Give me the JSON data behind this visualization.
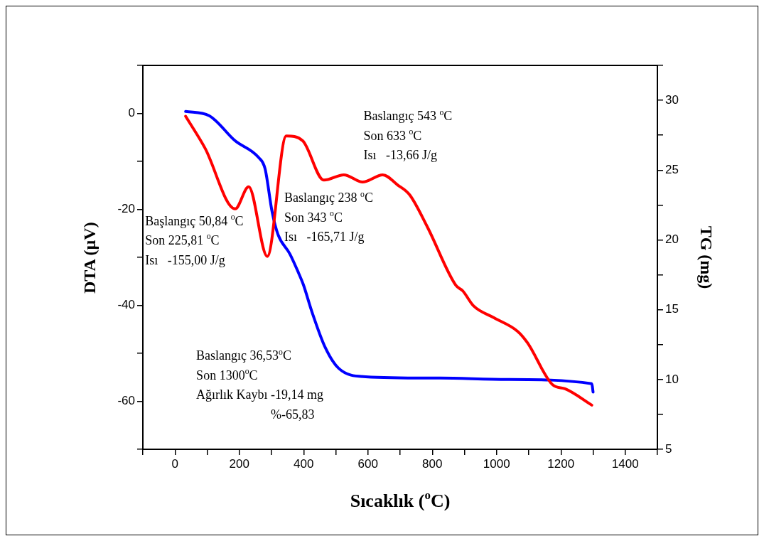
{
  "chart_data": {
    "type": "line",
    "xlabel": "Sıcaklık ($^{o}$C)",
    "ylabel": "DTA (µV)",
    "y2label": "TG (mg)",
    "xlim": [
      -100,
      1500
    ],
    "xticks": [
      {
        "value": -100,
        "label": null
      },
      0,
      {
        "value": 100,
        "label": null
      },
      200,
      {
        "value": 300,
        "label": null
      },
      400,
      {
        "value": 500,
        "label": null
      },
      600,
      {
        "value": 700,
        "label": null
      },
      800,
      {
        "value": 900,
        "label": null
      },
      1000,
      {
        "value": 1100,
        "label": null
      },
      1200,
      {
        "value": 1300,
        "label": null
      },
      1400,
      {
        "value": 1500,
        "label": null
      }
    ],
    "ylim": [
      -70,
      10
    ],
    "yticks": [
      {
        "value": -70,
        "label": null
      },
      -60,
      {
        "value": -50,
        "label": null
      },
      -40,
      {
        "value": -30,
        "label": null
      },
      -20,
      {
        "value": -10,
        "label": null
      },
      0,
      {
        "value": 10,
        "label": null
      }
    ],
    "y2lim": [
      5,
      32.5
    ],
    "y2ticks": [
      5,
      {
        "value": 7.5,
        "label": null
      },
      10,
      {
        "value": 12.5,
        "label": null
      },
      15,
      {
        "value": 17.5,
        "label": null
      },
      20,
      {
        "value": 22.5,
        "label": null
      },
      25,
      {
        "value": 27.5,
        "label": null
      },
      30,
      {
        "value": 32.5,
        "label": null
      }
    ],
    "grid": false,
    "legend": false,
    "marker": "none",
    "line_style": "solid",
    "series": [
      {
        "color": "#ff0000",
        "x": [
          33,
          93,
          187,
          229,
          287,
          346,
          397,
          463,
          525,
          584,
          646,
          692,
          730,
          785,
          873,
          895,
          928,
          992,
          1065,
          1096,
          1175,
          1213,
          1296
        ],
        "values": [
          -0.6,
          -7.2,
          -19.9,
          -15.3,
          -29.8,
          -4.7,
          -5.7,
          -13.9,
          -12.8,
          -14.3,
          -12.8,
          -14.9,
          -17,
          -23.7,
          -35.8,
          -37,
          -40.1,
          -42.6,
          -45.4,
          -47.8,
          -56.6,
          -57.4,
          -60.8
        ]
      },
      {
        "color": "#0000ff",
        "axis": "y2",
        "x": [
          33,
          106,
          187,
          260,
          280,
          302,
          320,
          357,
          381,
          399,
          425,
          467,
          509,
          593,
          824,
          1034,
          1296,
          1300
        ],
        "values": [
          29.2,
          28.9,
          27.1,
          25.9,
          25.1,
          22,
          20.4,
          19,
          17.8,
          16.8,
          14.9,
          12.3,
          10.8,
          10.2,
          10.1,
          10,
          9.7,
          9.1
        ]
      }
    ],
    "annotations": [
      "Başlangıç 50,84 $^{o}$C\nSon 225,81 $^{o}$C\nIsı   -155,00 J/g",
      "Baslangıç 238 $^{o}$C\nSon 343 $^{o}$C\nIsı   -165,71 J/g",
      "Baslangıç 543 $^{o}$C\nSon 633 $^{o}$C\nIsı   -13,66 J/g",
      "Baslangıç 36,53$^{o}$C\nSon 1300$^{o}$C\nAğırlık Kaybı -19,14 mg\n%-65,83"
    ]
  }
}
